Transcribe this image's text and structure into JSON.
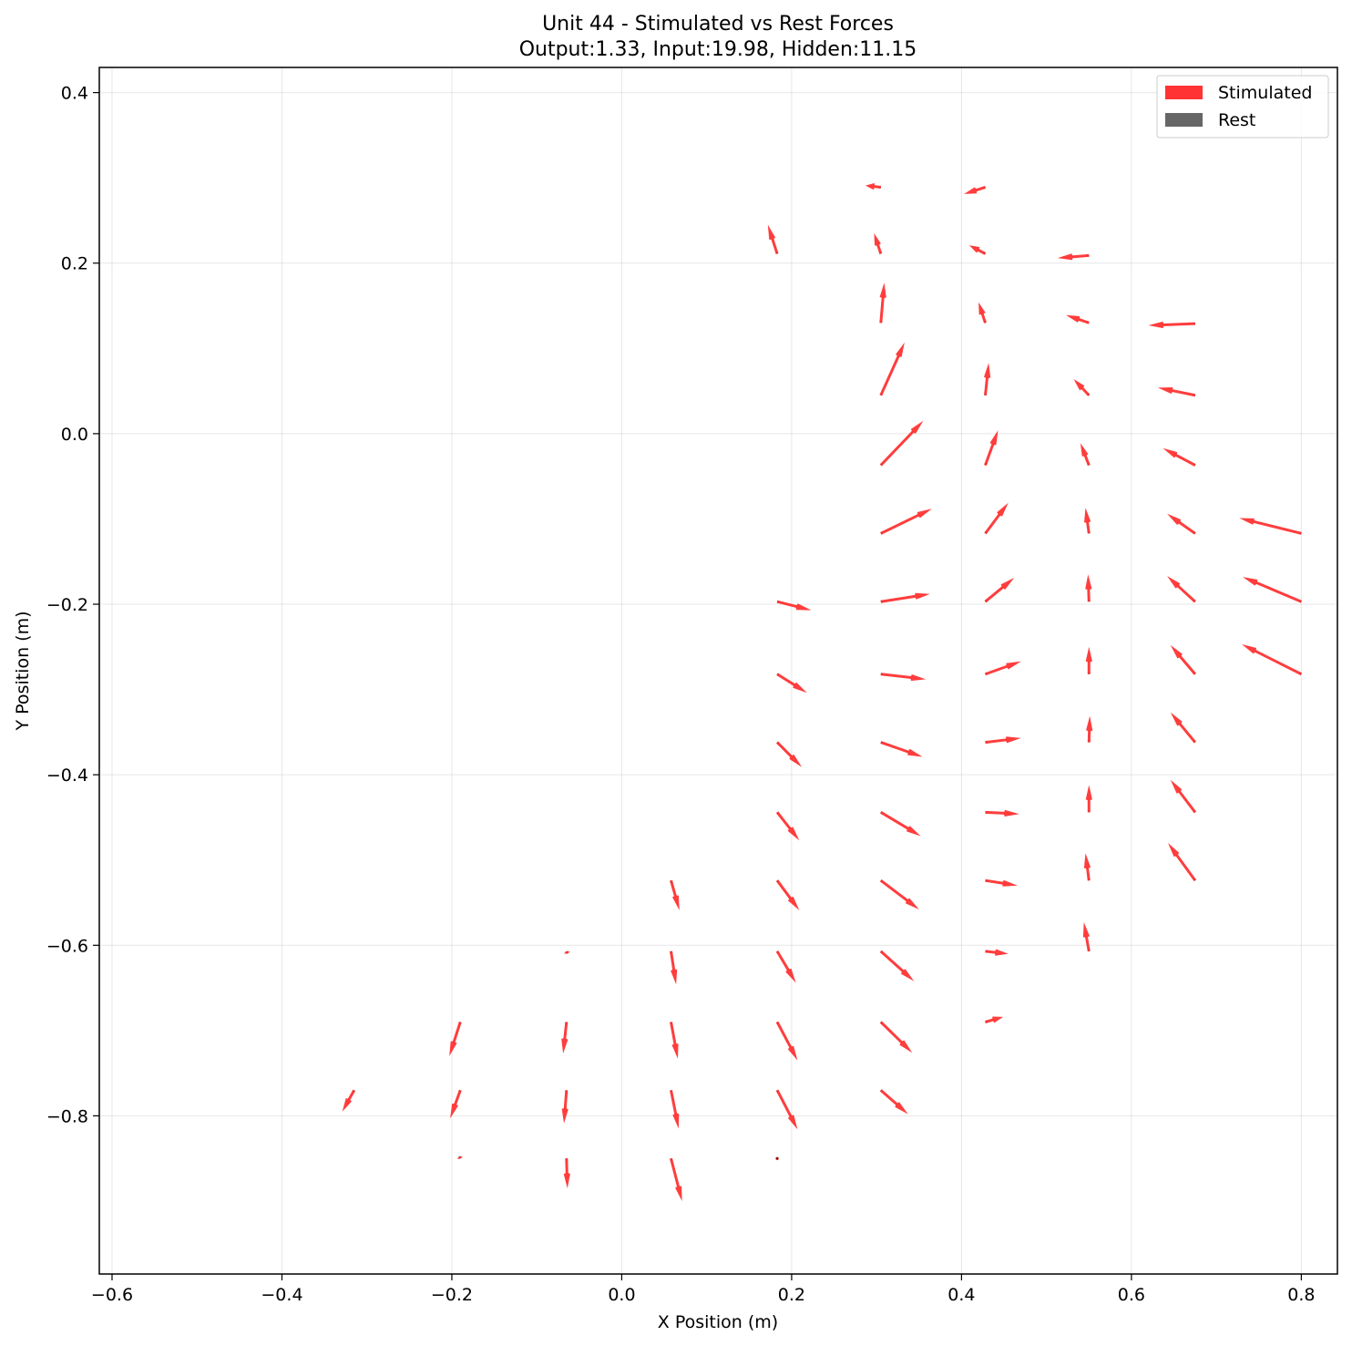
{
  "chart_data": {
    "type": "quiver",
    "title": "Unit 44 - Stimulated vs Rest Forces",
    "subtitle": "Output:1.33, Input:19.98, Hidden:11.15",
    "xlabel": "X Position (m)",
    "ylabel": "Y Position (m)",
    "xlim": [
      -0.615,
      0.8425
    ],
    "ylim": [
      -0.9855,
      0.4295
    ],
    "x_ticks": [
      -0.6,
      -0.4,
      -0.2,
      0.0,
      0.2,
      0.4,
      0.6,
      0.8
    ],
    "x_tick_labels": [
      "−0.6",
      "−0.4",
      "−0.2",
      "0.0",
      "0.2",
      "0.4",
      "0.6",
      "0.8"
    ],
    "y_ticks": [
      0.4,
      0.2,
      0.0,
      -0.2,
      -0.4,
      -0.6,
      -0.8
    ],
    "y_tick_labels": [
      "0.4",
      "0.2",
      "0.0",
      "−0.2",
      "−0.4",
      "−0.6",
      "−0.8"
    ],
    "grid": true,
    "legend_position": "top-right",
    "legend": [
      {
        "label": "Stimulated",
        "color": "#ff3333"
      },
      {
        "label": "Rest",
        "color": "#666666"
      }
    ],
    "colors": {
      "stimulated": "#ff3333",
      "rest": "#555555"
    },
    "series": [
      {
        "name": "Stimulated",
        "vectors": [
          {
            "x": 0.183,
            "y": 0.211,
            "u": -0.011,
            "v": 0.034
          },
          {
            "x": 0.305,
            "y": 0.289,
            "u": -0.018,
            "v": 0.002
          },
          {
            "x": 0.305,
            "y": 0.211,
            "u": -0.008,
            "v": 0.024
          },
          {
            "x": 0.428,
            "y": 0.289,
            "u": -0.025,
            "v": -0.008
          },
          {
            "x": 0.428,
            "y": 0.211,
            "u": -0.019,
            "v": 0.01
          },
          {
            "x": 0.55,
            "y": 0.209,
            "u": -0.037,
            "v": -0.003
          },
          {
            "x": 0.305,
            "y": 0.13,
            "u": 0.004,
            "v": 0.047
          },
          {
            "x": 0.428,
            "y": 0.13,
            "u": -0.008,
            "v": 0.024
          },
          {
            "x": 0.55,
            "y": 0.13,
            "u": -0.027,
            "v": 0.009
          },
          {
            "x": 0.675,
            "y": 0.129,
            "u": -0.055,
            "v": -0.002
          },
          {
            "x": 0.305,
            "y": 0.045,
            "u": 0.028,
            "v": 0.062
          },
          {
            "x": 0.428,
            "y": 0.045,
            "u": 0.004,
            "v": 0.038
          },
          {
            "x": 0.55,
            "y": 0.045,
            "u": -0.018,
            "v": 0.019
          },
          {
            "x": 0.675,
            "y": 0.045,
            "u": -0.044,
            "v": 0.009
          },
          {
            "x": 0.305,
            "y": -0.037,
            "u": 0.05,
            "v": 0.052
          },
          {
            "x": 0.428,
            "y": -0.037,
            "u": 0.015,
            "v": 0.041
          },
          {
            "x": 0.55,
            "y": -0.037,
            "u": -0.01,
            "v": 0.026
          },
          {
            "x": 0.675,
            "y": -0.037,
            "u": -0.038,
            "v": 0.02
          },
          {
            "x": 0.305,
            "y": -0.117,
            "u": 0.06,
            "v": 0.029
          },
          {
            "x": 0.428,
            "y": -0.117,
            "u": 0.027,
            "v": 0.036
          },
          {
            "x": 0.55,
            "y": -0.117,
            "u": -0.004,
            "v": 0.03
          },
          {
            "x": 0.675,
            "y": -0.117,
            "u": -0.033,
            "v": 0.023
          },
          {
            "x": 0.8,
            "y": -0.117,
            "u": -0.073,
            "v": 0.018
          },
          {
            "x": 0.183,
            "y": -0.197,
            "u": 0.04,
            "v": -0.01
          },
          {
            "x": 0.305,
            "y": -0.197,
            "u": 0.058,
            "v": 0.009
          },
          {
            "x": 0.428,
            "y": -0.197,
            "u": 0.034,
            "v": 0.028
          },
          {
            "x": 0.55,
            "y": -0.197,
            "u": -0.001,
            "v": 0.032
          },
          {
            "x": 0.675,
            "y": -0.197,
            "u": -0.033,
            "v": 0.03
          },
          {
            "x": 0.8,
            "y": -0.197,
            "u": -0.069,
            "v": 0.029
          },
          {
            "x": 0.183,
            "y": -0.282,
            "u": 0.035,
            "v": -0.022
          },
          {
            "x": 0.305,
            "y": -0.282,
            "u": 0.053,
            "v": -0.006
          },
          {
            "x": 0.428,
            "y": -0.282,
            "u": 0.042,
            "v": 0.015
          },
          {
            "x": 0.55,
            "y": -0.282,
            "u": 0.0,
            "v": 0.032
          },
          {
            "x": 0.675,
            "y": -0.282,
            "u": -0.029,
            "v": 0.034
          },
          {
            "x": 0.8,
            "y": -0.282,
            "u": -0.07,
            "v": 0.035
          },
          {
            "x": 0.183,
            "y": -0.362,
            "u": 0.029,
            "v": -0.029
          },
          {
            "x": 0.305,
            "y": -0.362,
            "u": 0.049,
            "v": -0.017
          },
          {
            "x": 0.428,
            "y": -0.362,
            "u": 0.042,
            "v": 0.005
          },
          {
            "x": 0.55,
            "y": -0.362,
            "u": 0.001,
            "v": 0.031
          },
          {
            "x": 0.675,
            "y": -0.362,
            "u": -0.029,
            "v": 0.035
          },
          {
            "x": 0.183,
            "y": -0.444,
            "u": 0.026,
            "v": -0.033
          },
          {
            "x": 0.305,
            "y": -0.444,
            "u": 0.047,
            "v": -0.028
          },
          {
            "x": 0.428,
            "y": -0.444,
            "u": 0.04,
            "v": -0.002
          },
          {
            "x": 0.55,
            "y": -0.444,
            "u": 0.0,
            "v": 0.032
          },
          {
            "x": 0.675,
            "y": -0.444,
            "u": -0.029,
            "v": 0.038
          },
          {
            "x": 0.058,
            "y": -0.524,
            "u": 0.01,
            "v": -0.035
          },
          {
            "x": 0.183,
            "y": -0.524,
            "u": 0.026,
            "v": -0.035
          },
          {
            "x": 0.305,
            "y": -0.524,
            "u": 0.045,
            "v": -0.034
          },
          {
            "x": 0.428,
            "y": -0.524,
            "u": 0.038,
            "v": -0.006
          },
          {
            "x": 0.55,
            "y": -0.524,
            "u": -0.004,
            "v": 0.032
          },
          {
            "x": 0.675,
            "y": -0.524,
            "u": -0.032,
            "v": 0.044
          },
          {
            "x": -0.065,
            "y": -0.607,
            "u": 0.001,
            "v": -0.003
          },
          {
            "x": 0.058,
            "y": -0.607,
            "u": 0.006,
            "v": -0.039
          },
          {
            "x": 0.183,
            "y": -0.607,
            "u": 0.022,
            "v": -0.037
          },
          {
            "x": 0.305,
            "y": -0.607,
            "u": 0.039,
            "v": -0.035
          },
          {
            "x": 0.428,
            "y": -0.607,
            "u": 0.027,
            "v": -0.003
          },
          {
            "x": 0.55,
            "y": -0.607,
            "u": -0.006,
            "v": 0.034
          },
          {
            "x": -0.19,
            "y": -0.69,
            "u": -0.013,
            "v": -0.04
          },
          {
            "x": -0.065,
            "y": -0.69,
            "u": -0.004,
            "v": -0.037
          },
          {
            "x": 0.058,
            "y": -0.69,
            "u": 0.008,
            "v": -0.043
          },
          {
            "x": 0.183,
            "y": -0.69,
            "u": 0.024,
            "v": -0.045
          },
          {
            "x": 0.305,
            "y": -0.69,
            "u": 0.037,
            "v": -0.036
          },
          {
            "x": 0.428,
            "y": -0.69,
            "u": 0.021,
            "v": 0.006
          },
          {
            "x": -0.315,
            "y": -0.77,
            "u": -0.014,
            "v": -0.025
          },
          {
            "x": -0.19,
            "y": -0.77,
            "u": -0.012,
            "v": -0.033
          },
          {
            "x": -0.065,
            "y": -0.77,
            "u": -0.003,
            "v": -0.039
          },
          {
            "x": 0.058,
            "y": -0.77,
            "u": 0.009,
            "v": -0.045
          },
          {
            "x": 0.183,
            "y": -0.77,
            "u": 0.024,
            "v": -0.046
          },
          {
            "x": 0.305,
            "y": -0.77,
            "u": 0.032,
            "v": -0.028
          },
          {
            "x": -0.19,
            "y": -0.85,
            "u": -0.001,
            "v": 0.002
          },
          {
            "x": -0.065,
            "y": -0.85,
            "u": 0.001,
            "v": -0.035
          },
          {
            "x": 0.058,
            "y": -0.85,
            "u": 0.013,
            "v": -0.05
          },
          {
            "x": 0.183,
            "y": -0.85,
            "u": -0.001,
            "v": 0.001
          }
        ]
      },
      {
        "name": "Rest",
        "vectors": []
      }
    ]
  }
}
